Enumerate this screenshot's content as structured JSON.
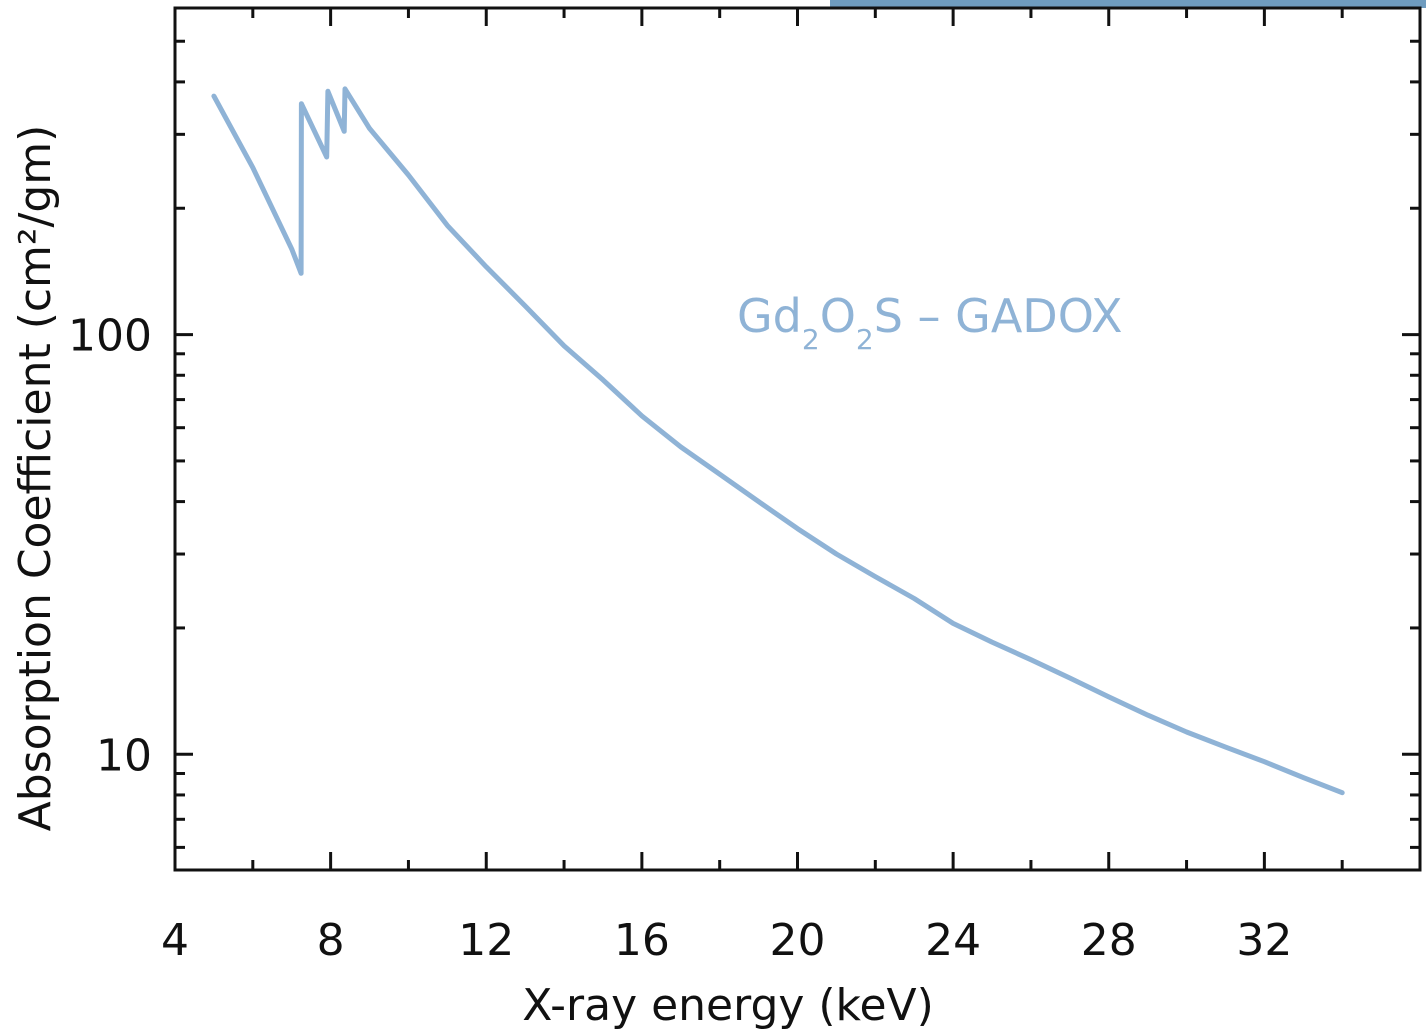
{
  "chart_data": {
    "type": "line",
    "xlabel": "X-ray energy (keV)",
    "ylabel": "Absorption Coefficient (cm²/gm)",
    "xlim": [
      4,
      36
    ],
    "ylim": [
      5.3,
      600
    ],
    "yscale": "log",
    "grid": false,
    "x_ticks": [
      4,
      8,
      12,
      16,
      20,
      24,
      28,
      32
    ],
    "x_tick_labels": [
      "4",
      "8",
      "12",
      "16",
      "20",
      "24",
      "28",
      "32"
    ],
    "y_ticks": [
      10,
      100
    ],
    "y_tick_labels": [
      "10",
      "100"
    ],
    "series": [
      {
        "name": "Gd2O2S - GADOX",
        "color": "#8fb3d6",
        "x": [
          5.0,
          6.0,
          7.0,
          7.24,
          7.25,
          7.9,
          7.93,
          8.35,
          8.37,
          9.0,
          10.0,
          11.0,
          12.0,
          13.0,
          14.0,
          15.0,
          16.0,
          17.0,
          18.0,
          19.0,
          20.0,
          21.0,
          22.0,
          23.0,
          24.0,
          25.0,
          26.0,
          27.0,
          28.0,
          29.0,
          30.0,
          31.0,
          32.0,
          33.0,
          34.0
        ],
        "y": [
          370,
          250,
          160,
          140,
          355,
          265,
          380,
          305,
          385,
          310,
          240,
          182,
          145,
          117,
          94,
          78,
          64,
          54,
          46.5,
          40,
          34.5,
          30,
          26.5,
          23.5,
          20.5,
          18.5,
          16.8,
          15.2,
          13.7,
          12.4,
          11.3,
          10.4,
          9.6,
          8.8,
          8.1
        ]
      }
    ],
    "annotation": {
      "parts": [
        {
          "text": "Gd",
          "sub": false
        },
        {
          "text": "2",
          "sub": true
        },
        {
          "text": "O",
          "sub": false
        },
        {
          "text": "2",
          "sub": true
        },
        {
          "text": "S – GADOX",
          "sub": false
        }
      ],
      "color": "#8fb3d6"
    },
    "corner_bar_color": "#6f9cbf"
  }
}
